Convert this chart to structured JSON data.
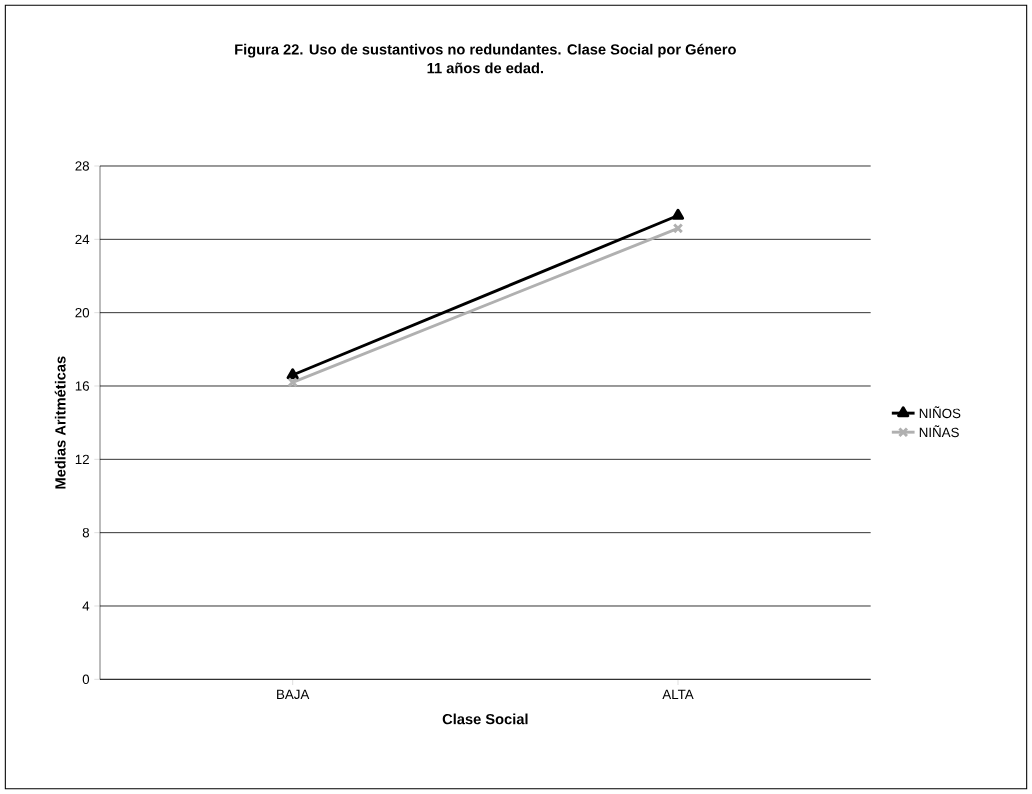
{
  "chart_data": {
    "type": "line",
    "title": "Figura 22.  Uso de sustantivos no redundantes. Clase Social por Género\n11 años de edad.",
    "xlabel": "Clase Social",
    "ylabel": "Medias Aritméticas",
    "categories": [
      "BAJA",
      "ALTA"
    ],
    "series": [
      {
        "name": "NIÑOS",
        "color": "#000000",
        "values": [
          16.6,
          25.3
        ],
        "marker": "triangle"
      },
      {
        "name": "NIÑAS",
        "color": "#b0b0b0",
        "values": [
          16.2,
          24.6
        ],
        "marker": "cross"
      }
    ],
    "ylim": [
      0,
      28
    ],
    "yticks": [
      0,
      4,
      8,
      12,
      16,
      20,
      24,
      28
    ],
    "grid": "y",
    "legend": "right"
  }
}
